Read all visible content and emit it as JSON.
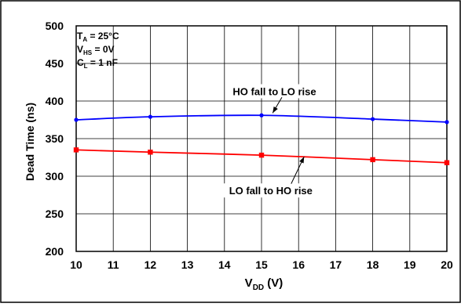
{
  "chart_data": {
    "type": "line",
    "title": "",
    "xlabel": {
      "main": "V",
      "sub": "DD",
      "unit": " (V)"
    },
    "ylabel": "Dead Time (ns)",
    "xlim": [
      10,
      20
    ],
    "ylim": [
      200,
      500
    ],
    "x_ticks": [
      "10",
      "11",
      "12",
      "13",
      "14",
      "15",
      "16",
      "17",
      "18",
      "19",
      "20"
    ],
    "y_ticks": [
      "200",
      "250",
      "300",
      "350",
      "400",
      "450",
      "500"
    ],
    "grid": true,
    "conditions": [
      {
        "main": "T",
        "sub": "A",
        "rest": " = 25°C"
      },
      {
        "main": "V",
        "sub": "HS",
        "rest": " = 0V"
      },
      {
        "main": "C",
        "sub": "L",
        "rest": " = 1 nF"
      }
    ],
    "series": [
      {
        "name": "HO fall to LO rise",
        "color": "#0000ff",
        "marker": "circle",
        "x": [
          10,
          12,
          15,
          18,
          20
        ],
        "y": [
          375,
          379,
          381,
          376,
          372
        ],
        "label_pos": [
          15.35,
          412
        ],
        "arrow_from": [
          15.55,
          405
        ],
        "arrow_to": [
          15.3,
          384
        ]
      },
      {
        "name": "LO fall to HO rise",
        "color": "#ff0000",
        "marker": "square",
        "x": [
          10,
          12,
          15,
          18,
          20
        ],
        "y": [
          335,
          332,
          328,
          322,
          318
        ],
        "label_pos": [
          15.25,
          280
        ],
        "arrow_from": [
          15.8,
          290
        ],
        "arrow_to": [
          16.15,
          326
        ]
      }
    ]
  }
}
